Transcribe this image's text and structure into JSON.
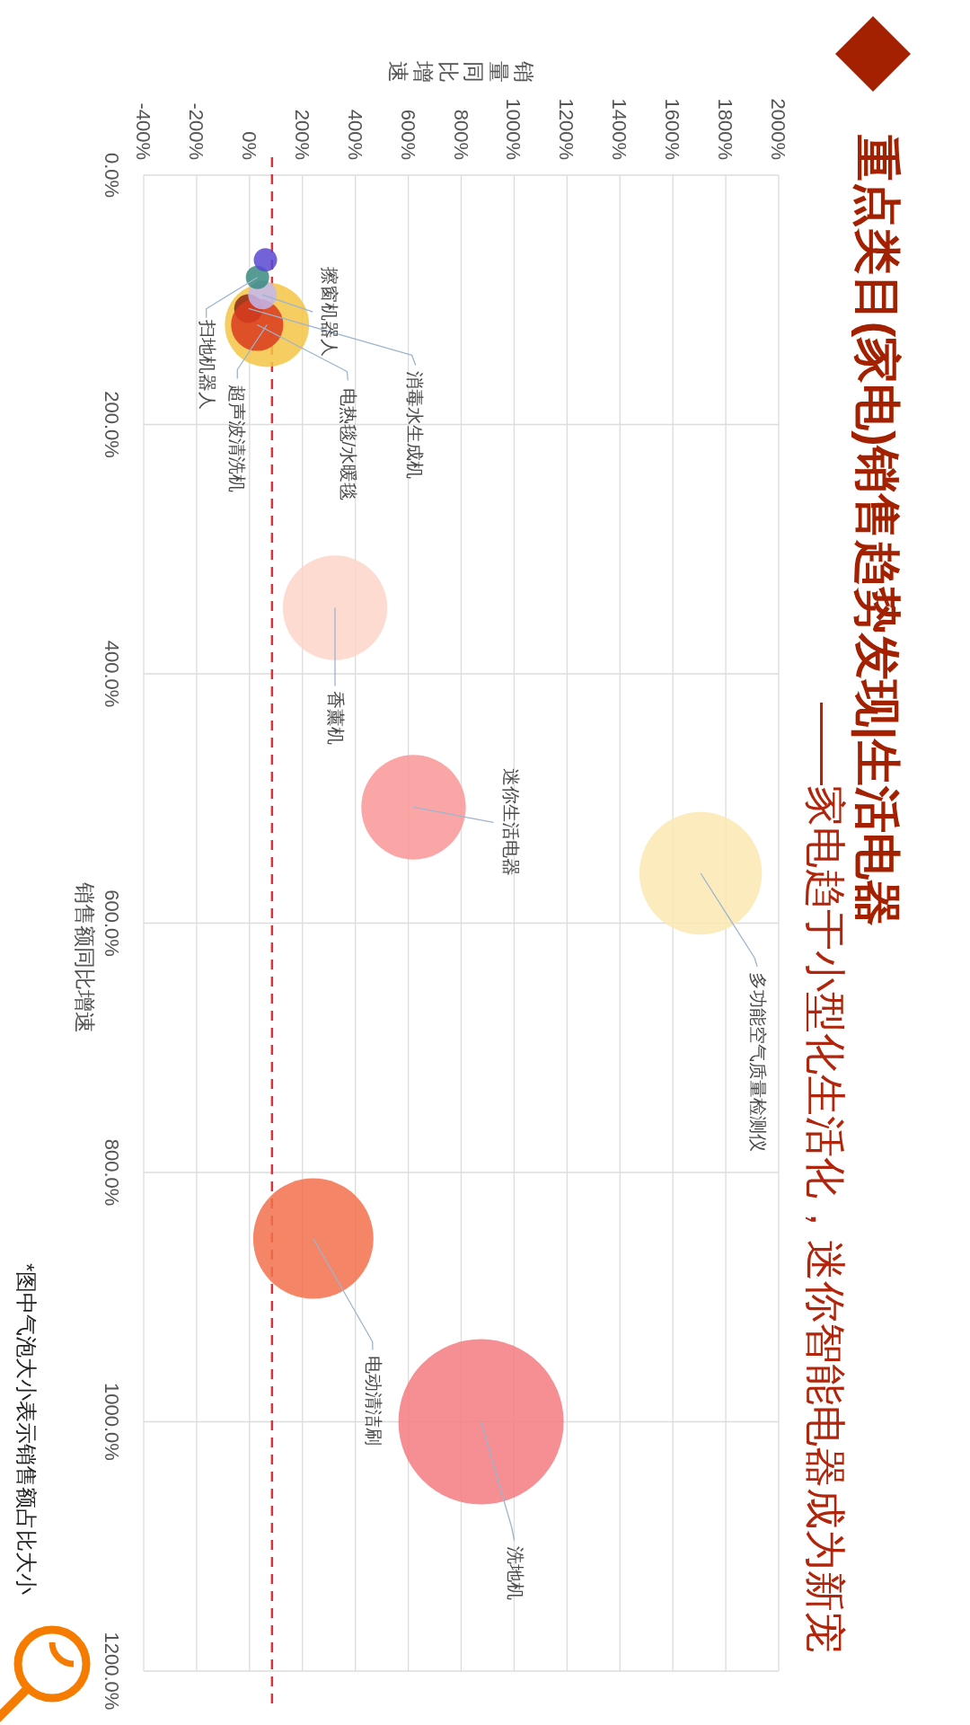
{
  "chart_data": {
    "type": "bubble",
    "title": "重点类目(家电)销售趋势发现|生活电器",
    "subtitle": "——家电趋于小型化生活化，迷你智能电器成为新宠",
    "xlabel": "销量同比增速",
    "ylabel": "销售额同比增速",
    "annotations": [
      "*图中气泡大小表示销售额占比大小"
    ],
    "xlim": [
      -400,
      2000
    ],
    "xticks": [
      {
        "value": -400,
        "label": "-400%"
      },
      {
        "value": -200,
        "label": "-200%"
      },
      {
        "value": 0,
        "label": "0%"
      },
      {
        "value": 200,
        "label": "200%"
      },
      {
        "value": 400,
        "label": "400%"
      },
      {
        "value": 600,
        "label": "600%"
      },
      {
        "value": 800,
        "label": "800%"
      },
      {
        "value": 1000,
        "label": "1000%"
      },
      {
        "value": 1200,
        "label": "1200%"
      },
      {
        "value": 1400,
        "label": "1400%"
      },
      {
        "value": 1600,
        "label": "1600%"
      },
      {
        "value": 1800,
        "label": "1800%"
      },
      {
        "value": 2000,
        "label": "2000%"
      }
    ],
    "ylim": [
      1200,
      0
    ],
    "yticks": [
      {
        "value": 0,
        "label": "0.0%"
      },
      {
        "value": 200,
        "label": "200.0%"
      },
      {
        "value": 400,
        "label": "400.0%"
      },
      {
        "value": 600,
        "label": "600.0%"
      },
      {
        "value": 800,
        "label": "800.0%"
      },
      {
        "value": 1000,
        "label": "1000.0%"
      },
      {
        "value": 1200,
        "label": "1200.0%"
      }
    ],
    "grid": true,
    "ref_lines": [
      {
        "axis": "x",
        "value": 85,
        "color": "#d9343a",
        "line_style": "dashed"
      }
    ],
    "series": [
      {
        "name": "超声波清洗机",
        "color": "#f5c445",
        "x": [
          66
        ],
        "values": [
          120
        ],
        "sizes": [
          0.26
        ]
      },
      {
        "name": "消毒水生成机",
        "color": "#8f2414",
        "x": [
          -4
        ],
        "values": [
          107
        ],
        "sizes": [
          0.03
        ]
      },
      {
        "name": "电热毯/水暖毯",
        "color": "#d93b1f",
        "x": [
          29
        ],
        "values": [
          120
        ],
        "sizes": [
          0.1
        ]
      },
      {
        "name": "擦窗机器人",
        "color": "#c2b8f0",
        "x": [
          49
        ],
        "values": [
          96
        ],
        "sizes": [
          0.03
        ]
      },
      {
        "name": "扫地机器人",
        "color": "#3a8b7f",
        "x": [
          30
        ],
        "values": [
          82
        ],
        "sizes": [
          0.02
        ]
      },
      {
        "color": "#5a48d4",
        "x": [
          60
        ],
        "values": [
          68
        ],
        "sizes": [
          0.02
        ]
      },
      {
        "name": "香薰机",
        "color": "#fdd5c8",
        "x": [
          323
        ],
        "values": [
          347
        ],
        "sizes": [
          0.4
        ]
      },
      {
        "name": "迷你生活电器",
        "color": "#f99697",
        "x": [
          620
        ],
        "values": [
          507
        ],
        "sizes": [
          0.4
        ]
      },
      {
        "name": "多功能空气质量检测仪",
        "color": "#fbe7b2",
        "x": [
          1705
        ],
        "values": [
          560
        ],
        "sizes": [
          0.55
        ]
      },
      {
        "name": "电动清洁刷",
        "color": "#f2714c",
        "x": [
          241
        ],
        "values": [
          853
        ],
        "sizes": [
          0.53
        ]
      },
      {
        "name": "洗地机",
        "color": "#f47b80",
        "x": [
          875
        ],
        "values": [
          1000
        ],
        "sizes": [
          1
        ]
      }
    ]
  }
}
